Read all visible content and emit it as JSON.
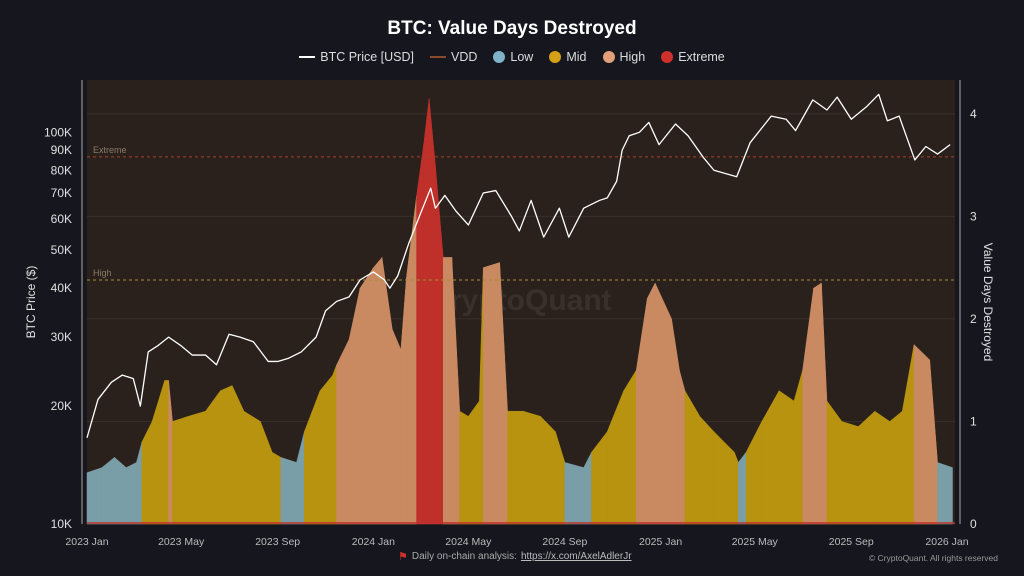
{
  "chart_data": {
    "type": "area",
    "title": "BTC: Value Days Destroyed",
    "legend": [
      {
        "label": "BTC Price [USD]",
        "kind": "line",
        "color": "#ffffff"
      },
      {
        "label": "VDD",
        "kind": "line",
        "color": "#8a4a2a"
      },
      {
        "label": "Low",
        "kind": "dot",
        "color": "#7fb3c8"
      },
      {
        "label": "Mid",
        "kind": "dot",
        "color": "#d4a017"
      },
      {
        "label": "High",
        "kind": "dot",
        "color": "#e0a07a"
      },
      {
        "label": "Extreme",
        "kind": "dot",
        "color": "#d0302a"
      }
    ],
    "legend_position": "top",
    "colors": {
      "Low": "#7a9ea8",
      "Mid": "#b8930f",
      "High": "#c98a62",
      "Extreme": "#c0302a",
      "background": "#2a211c",
      "price": "#ffffff"
    },
    "ylabel_left": "BTC Price ($)",
    "ylabel_right": "Value Days Destroyed",
    "y_left_scale": "log",
    "y_left_ticks": [
      "10K",
      "20K",
      "30K",
      "40K",
      "50K",
      "60K",
      "70K",
      "80K",
      "90K",
      "100K"
    ],
    "y_left_tick_values": [
      10000,
      20000,
      30000,
      40000,
      50000,
      60000,
      70000,
      80000,
      90000,
      100000
    ],
    "y_left_range": [
      10000,
      136000
    ],
    "y_right_ticks": [
      "0",
      "1",
      "2",
      "3",
      "4"
    ],
    "y_right_range": [
      0,
      4.33
    ],
    "x_ticks": [
      "2023 Jan",
      "2023 May",
      "2023 Sep",
      "2024 Jan",
      "2024 May",
      "2024 Sep",
      "2025 Jan",
      "2025 May",
      "2025 Sep",
      "2026 Jan"
    ],
    "x_tick_dates": [
      "2023-01-01",
      "2023-05-01",
      "2023-09-01",
      "2024-01-01",
      "2024-05-01",
      "2024-09-01",
      "2025-01-01",
      "2025-05-01",
      "2025-09-01",
      "2026-01-01"
    ],
    "thresholds": [
      {
        "label": "Extreme",
        "value": 3.58
      },
      {
        "label": "High",
        "value": 2.38
      }
    ],
    "grid": true,
    "watermark": "CryptoQuant",
    "price": [
      [
        "2023-01-01",
        16600
      ],
      [
        "2023-01-15",
        20800
      ],
      [
        "2023-02-01",
        23000
      ],
      [
        "2023-02-15",
        24000
      ],
      [
        "2023-03-01",
        23500
      ],
      [
        "2023-03-10",
        20000
      ],
      [
        "2023-03-20",
        27500
      ],
      [
        "2023-04-01",
        28500
      ],
      [
        "2023-04-15",
        30000
      ],
      [
        "2023-05-01",
        28500
      ],
      [
        "2023-05-15",
        27000
      ],
      [
        "2023-06-01",
        27000
      ],
      [
        "2023-06-15",
        25500
      ],
      [
        "2023-07-01",
        30500
      ],
      [
        "2023-07-15",
        30000
      ],
      [
        "2023-08-01",
        29200
      ],
      [
        "2023-08-20",
        26000
      ],
      [
        "2023-09-01",
        26000
      ],
      [
        "2023-09-15",
        26500
      ],
      [
        "2023-10-01",
        27500
      ],
      [
        "2023-10-20",
        30000
      ],
      [
        "2023-11-01",
        35000
      ],
      [
        "2023-11-15",
        37000
      ],
      [
        "2023-12-01",
        38000
      ],
      [
        "2023-12-15",
        42000
      ],
      [
        "2024-01-01",
        44000
      ],
      [
        "2024-01-15",
        42000
      ],
      [
        "2024-01-22",
        40000
      ],
      [
        "2024-02-01",
        43000
      ],
      [
        "2024-02-15",
        52000
      ],
      [
        "2024-03-01",
        62000
      ],
      [
        "2024-03-14",
        72000
      ],
      [
        "2024-03-20",
        64000
      ],
      [
        "2024-04-01",
        69000
      ],
      [
        "2024-04-15",
        63000
      ],
      [
        "2024-05-01",
        58000
      ],
      [
        "2024-05-20",
        70000
      ],
      [
        "2024-06-05",
        71000
      ],
      [
        "2024-06-25",
        61000
      ],
      [
        "2024-07-05",
        56000
      ],
      [
        "2024-07-20",
        67000
      ],
      [
        "2024-08-05",
        54000
      ],
      [
        "2024-08-25",
        64000
      ],
      [
        "2024-09-06",
        54000
      ],
      [
        "2024-09-25",
        64000
      ],
      [
        "2024-10-15",
        67000
      ],
      [
        "2024-10-25",
        68000
      ],
      [
        "2024-11-06",
        75000
      ],
      [
        "2024-11-13",
        90000
      ],
      [
        "2024-11-22",
        98000
      ],
      [
        "2024-12-05",
        100000
      ],
      [
        "2024-12-17",
        106000
      ],
      [
        "2024-12-30",
        93000
      ],
      [
        "2025-01-20",
        105000
      ],
      [
        "2025-02-05",
        98000
      ],
      [
        "2025-02-25",
        86000
      ],
      [
        "2025-03-10",
        80000
      ],
      [
        "2025-04-08",
        77000
      ],
      [
        "2025-04-25",
        94000
      ],
      [
        "2025-05-22",
        110000
      ],
      [
        "2025-06-10",
        108000
      ],
      [
        "2025-06-22",
        101000
      ],
      [
        "2025-07-14",
        121000
      ],
      [
        "2025-08-01",
        114000
      ],
      [
        "2025-08-14",
        123000
      ],
      [
        "2025-09-01",
        108000
      ],
      [
        "2025-09-20",
        116000
      ],
      [
        "2025-10-06",
        125000
      ],
      [
        "2025-10-17",
        107000
      ],
      [
        "2025-11-01",
        110000
      ],
      [
        "2025-11-21",
        85000
      ],
      [
        "2025-12-05",
        92000
      ],
      [
        "2025-12-20",
        88000
      ],
      [
        "2026-01-05",
        93000
      ]
    ],
    "vdd": [
      [
        "2023-01-01",
        0.5,
        "Low"
      ],
      [
        "2023-01-20",
        0.55,
        "Low"
      ],
      [
        "2023-02-05",
        0.65,
        "Low"
      ],
      [
        "2023-02-20",
        0.55,
        "Low"
      ],
      [
        "2023-03-05",
        0.6,
        "Low"
      ],
      [
        "2023-03-12",
        0.8,
        "Mid"
      ],
      [
        "2023-03-25",
        1.0,
        "Mid"
      ],
      [
        "2023-04-10",
        1.4,
        "Mid"
      ],
      [
        "2023-04-15",
        1.4,
        "High"
      ],
      [
        "2023-04-20",
        1.0,
        "Mid"
      ],
      [
        "2023-05-10",
        1.05,
        "Mid"
      ],
      [
        "2023-06-01",
        1.1,
        "Mid"
      ],
      [
        "2023-06-20",
        1.3,
        "Mid"
      ],
      [
        "2023-07-05",
        1.35,
        "Mid"
      ],
      [
        "2023-07-20",
        1.1,
        "Mid"
      ],
      [
        "2023-08-10",
        1.0,
        "Mid"
      ],
      [
        "2023-08-25",
        0.7,
        "Mid"
      ],
      [
        "2023-09-05",
        0.65,
        "Low"
      ],
      [
        "2023-09-25",
        0.6,
        "Low"
      ],
      [
        "2023-10-05",
        0.9,
        "Mid"
      ],
      [
        "2023-10-25",
        1.3,
        "Mid"
      ],
      [
        "2023-11-10",
        1.45,
        "Mid"
      ],
      [
        "2023-11-15",
        1.55,
        "High"
      ],
      [
        "2023-12-01",
        1.8,
        "High"
      ],
      [
        "2023-12-15",
        2.3,
        "High"
      ],
      [
        "2024-01-01",
        2.5,
        "High"
      ],
      [
        "2024-01-12",
        2.6,
        "High"
      ],
      [
        "2024-01-25",
        1.9,
        "High"
      ],
      [
        "2024-02-05",
        1.7,
        "High"
      ],
      [
        "2024-02-12",
        2.4,
        "High"
      ],
      [
        "2024-02-25",
        3.2,
        "Extreme"
      ],
      [
        "2024-03-05",
        3.7,
        "Extreme"
      ],
      [
        "2024-03-12",
        4.15,
        "Extreme"
      ],
      [
        "2024-03-20",
        3.5,
        "Extreme"
      ],
      [
        "2024-03-30",
        2.6,
        "High"
      ],
      [
        "2024-04-10",
        2.6,
        "High"
      ],
      [
        "2024-04-20",
        1.1,
        "Mid"
      ],
      [
        "2024-05-01",
        1.05,
        "Mid"
      ],
      [
        "2024-05-15",
        1.2,
        "Mid"
      ],
      [
        "2024-05-20",
        2.5,
        "High"
      ],
      [
        "2024-06-10",
        2.55,
        "High"
      ],
      [
        "2024-06-20",
        1.1,
        "Mid"
      ],
      [
        "2024-07-10",
        1.1,
        "Mid"
      ],
      [
        "2024-08-01",
        1.05,
        "Mid"
      ],
      [
        "2024-08-20",
        0.9,
        "Mid"
      ],
      [
        "2024-09-01",
        0.6,
        "Low"
      ],
      [
        "2024-09-25",
        0.55,
        "Low"
      ],
      [
        "2024-10-05",
        0.7,
        "Mid"
      ],
      [
        "2024-10-25",
        0.9,
        "Mid"
      ],
      [
        "2024-11-15",
        1.3,
        "Mid"
      ],
      [
        "2024-12-01",
        1.5,
        "High"
      ],
      [
        "2024-12-15",
        2.2,
        "High"
      ],
      [
        "2024-12-25",
        2.35,
        "High"
      ],
      [
        "2025-01-15",
        2.0,
        "High"
      ],
      [
        "2025-01-25",
        1.5,
        "High"
      ],
      [
        "2025-02-01",
        1.3,
        "Mid"
      ],
      [
        "2025-02-20",
        1.05,
        "Mid"
      ],
      [
        "2025-03-10",
        0.9,
        "Mid"
      ],
      [
        "2025-04-05",
        0.7,
        "Mid"
      ],
      [
        "2025-04-10",
        0.6,
        "Low"
      ],
      [
        "2025-04-20",
        0.7,
        "Mid"
      ],
      [
        "2025-05-10",
        1.0,
        "Mid"
      ],
      [
        "2025-06-01",
        1.3,
        "Mid"
      ],
      [
        "2025-06-20",
        1.2,
        "Mid"
      ],
      [
        "2025-07-01",
        1.5,
        "High"
      ],
      [
        "2025-07-15",
        2.3,
        "High"
      ],
      [
        "2025-07-25",
        2.35,
        "High"
      ],
      [
        "2025-08-01",
        1.2,
        "Mid"
      ],
      [
        "2025-08-20",
        1.0,
        "Mid"
      ],
      [
        "2025-09-10",
        0.95,
        "Mid"
      ],
      [
        "2025-10-01",
        1.1,
        "Mid"
      ],
      [
        "2025-10-20",
        1.0,
        "Mid"
      ],
      [
        "2025-11-05",
        1.1,
        "Mid"
      ],
      [
        "2025-11-20",
        1.75,
        "High"
      ],
      [
        "2025-12-10",
        1.6,
        "High"
      ],
      [
        "2025-12-20",
        0.6,
        "Low"
      ],
      [
        "2026-01-08",
        0.55,
        "Low"
      ]
    ]
  },
  "footer": {
    "text": "Daily on-chain analysis:",
    "link": "https://x.com/AxelAdlerJr",
    "copyright": "© CryptoQuant. All rights reserved"
  }
}
